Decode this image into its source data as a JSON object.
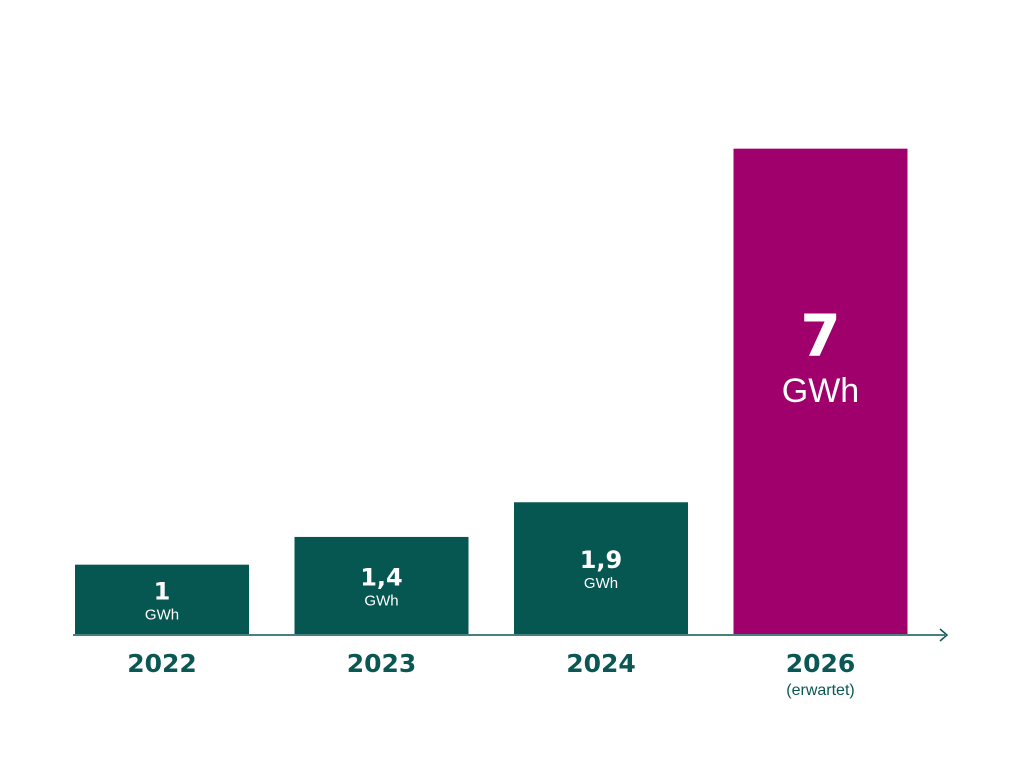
{
  "chart_data": {
    "type": "bar",
    "categories": [
      "2022",
      "2023",
      "2024",
      "2026"
    ],
    "category_notes": [
      "",
      "",
      "",
      "(erwartet)"
    ],
    "values": [
      1,
      1.4,
      1.9,
      7
    ],
    "value_labels": [
      "1",
      "1,4",
      "1,9",
      "7"
    ],
    "unit_label": "GWh",
    "ylim": [
      0,
      7.5
    ],
    "grid": false,
    "legend": "none",
    "colors": {
      "actual": "#065652",
      "expected": "#a0006b",
      "axis": "#0a5753",
      "label_text": "#ffffff"
    },
    "highlighted": [
      false,
      false,
      false,
      true
    ]
  }
}
